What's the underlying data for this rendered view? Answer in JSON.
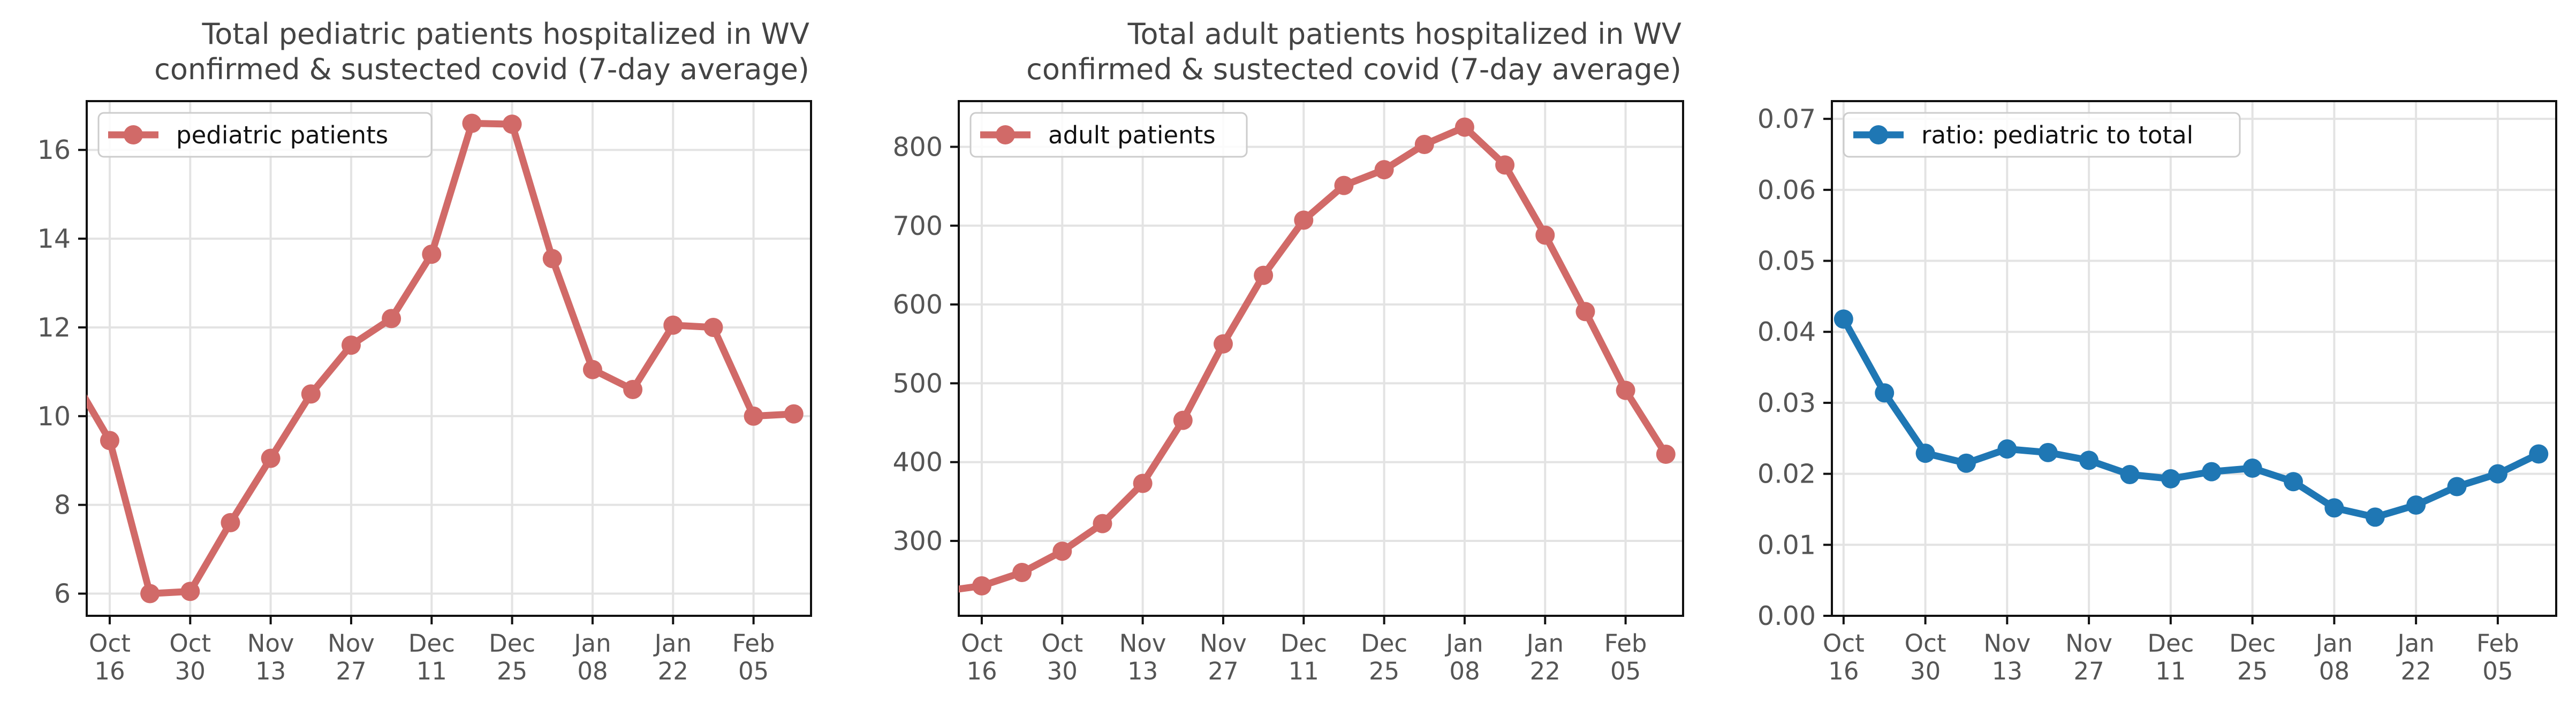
{
  "chart_data": [
    {
      "type": "line",
      "title": "Total pediatric patients hospitalized in WV\nconfirmed & sustected covid (7-day average)",
      "xlabel": "",
      "ylabel": "",
      "x_tick_labels": [
        "Oct\n16",
        "Oct\n30",
        "Nov\n13",
        "Nov\n27",
        "Dec\n11",
        "Dec\n25",
        "Jan\n08",
        "Jan\n22",
        "Feb\n05"
      ],
      "yticks": [
        6,
        8,
        10,
        12,
        14,
        16
      ],
      "ylim": [
        5.5,
        17.1
      ],
      "xlim": [
        "2021-10-12",
        "2022-02-15"
      ],
      "grid": true,
      "legend_position": "top-left",
      "color": "#d16a68",
      "series": [
        {
          "name": "pediatric patients",
          "x": [
            "2021-10-09",
            "2021-10-16",
            "2021-10-23",
            "2021-10-30",
            "2021-11-06",
            "2021-11-13",
            "2021-11-20",
            "2021-11-27",
            "2021-12-04",
            "2021-12-11",
            "2021-12-18",
            "2021-12-25",
            "2022-01-01",
            "2022-01-08",
            "2022-01-15",
            "2022-01-22",
            "2022-01-29",
            "2022-02-05",
            "2022-02-12"
          ],
          "values": [
            11.0,
            9.45,
            6.0,
            6.05,
            7.6,
            9.05,
            10.5,
            11.6,
            12.2,
            13.65,
            16.6,
            16.58,
            13.55,
            11.05,
            10.6,
            12.05,
            12.0,
            10.0,
            10.05
          ]
        }
      ]
    },
    {
      "type": "line",
      "title": "Total adult patients hospitalized in WV\nconfirmed & sustected covid (7-day average)",
      "xlabel": "",
      "ylabel": "",
      "x_tick_labels": [
        "Oct\n16",
        "Oct\n30",
        "Nov\n13",
        "Nov\n27",
        "Dec\n11",
        "Dec\n25",
        "Jan\n08",
        "Jan\n22",
        "Feb\n05"
      ],
      "yticks": [
        300,
        400,
        500,
        600,
        700,
        800
      ],
      "ylim": [
        205,
        858
      ],
      "xlim": [
        "2021-10-12",
        "2022-02-15"
      ],
      "grid": true,
      "legend_position": "top-left",
      "color": "#d16a68",
      "series": [
        {
          "name": "adult patients",
          "x": [
            "2021-10-09",
            "2021-10-16",
            "2021-10-23",
            "2021-10-30",
            "2021-11-06",
            "2021-11-13",
            "2021-11-20",
            "2021-11-27",
            "2021-12-04",
            "2021-12-11",
            "2021-12-18",
            "2021-12-25",
            "2022-01-01",
            "2022-01-08",
            "2022-01-15",
            "2022-01-22",
            "2022-01-29",
            "2022-02-05",
            "2022-02-12"
          ],
          "values": [
            236,
            243,
            260,
            287,
            322,
            373,
            453,
            550,
            637,
            707,
            751,
            771,
            803,
            825,
            777,
            688,
            591,
            491,
            410
          ]
        }
      ]
    },
    {
      "type": "line",
      "title": "",
      "xlabel": "",
      "ylabel": "",
      "x_tick_labels": [
        "Oct\n16",
        "Oct\n30",
        "Nov\n13",
        "Nov\n27",
        "Dec\n11",
        "Dec\n25",
        "Jan\n08",
        "Jan\n22",
        "Feb\n05"
      ],
      "yticks": [
        "0.00",
        "0.01",
        "0.02",
        "0.03",
        "0.04",
        "0.05",
        "0.06",
        "0.07"
      ],
      "ylim": [
        0.0,
        0.0725
      ],
      "xlim": [
        "2021-10-14",
        "2022-02-15"
      ],
      "grid": true,
      "legend_position": "top-left",
      "color": "#1f77b4",
      "series": [
        {
          "name": "ratio: pediatric to total",
          "x": [
            "2021-10-16",
            "2021-10-23",
            "2021-10-30",
            "2021-11-06",
            "2021-11-13",
            "2021-11-20",
            "2021-11-27",
            "2021-12-04",
            "2021-12-11",
            "2021-12-18",
            "2021-12-25",
            "2022-01-01",
            "2022-01-08",
            "2022-01-15",
            "2022-01-22",
            "2022-01-29",
            "2022-02-05",
            "2022-02-12"
          ],
          "values": [
            0.0418,
            0.0314,
            0.0229,
            0.0215,
            0.0235,
            0.023,
            0.0219,
            0.0199,
            0.0193,
            0.0203,
            0.0208,
            0.0189,
            0.0152,
            0.0139,
            0.0156,
            0.0182,
            0.02,
            0.0228
          ]
        }
      ]
    }
  ]
}
